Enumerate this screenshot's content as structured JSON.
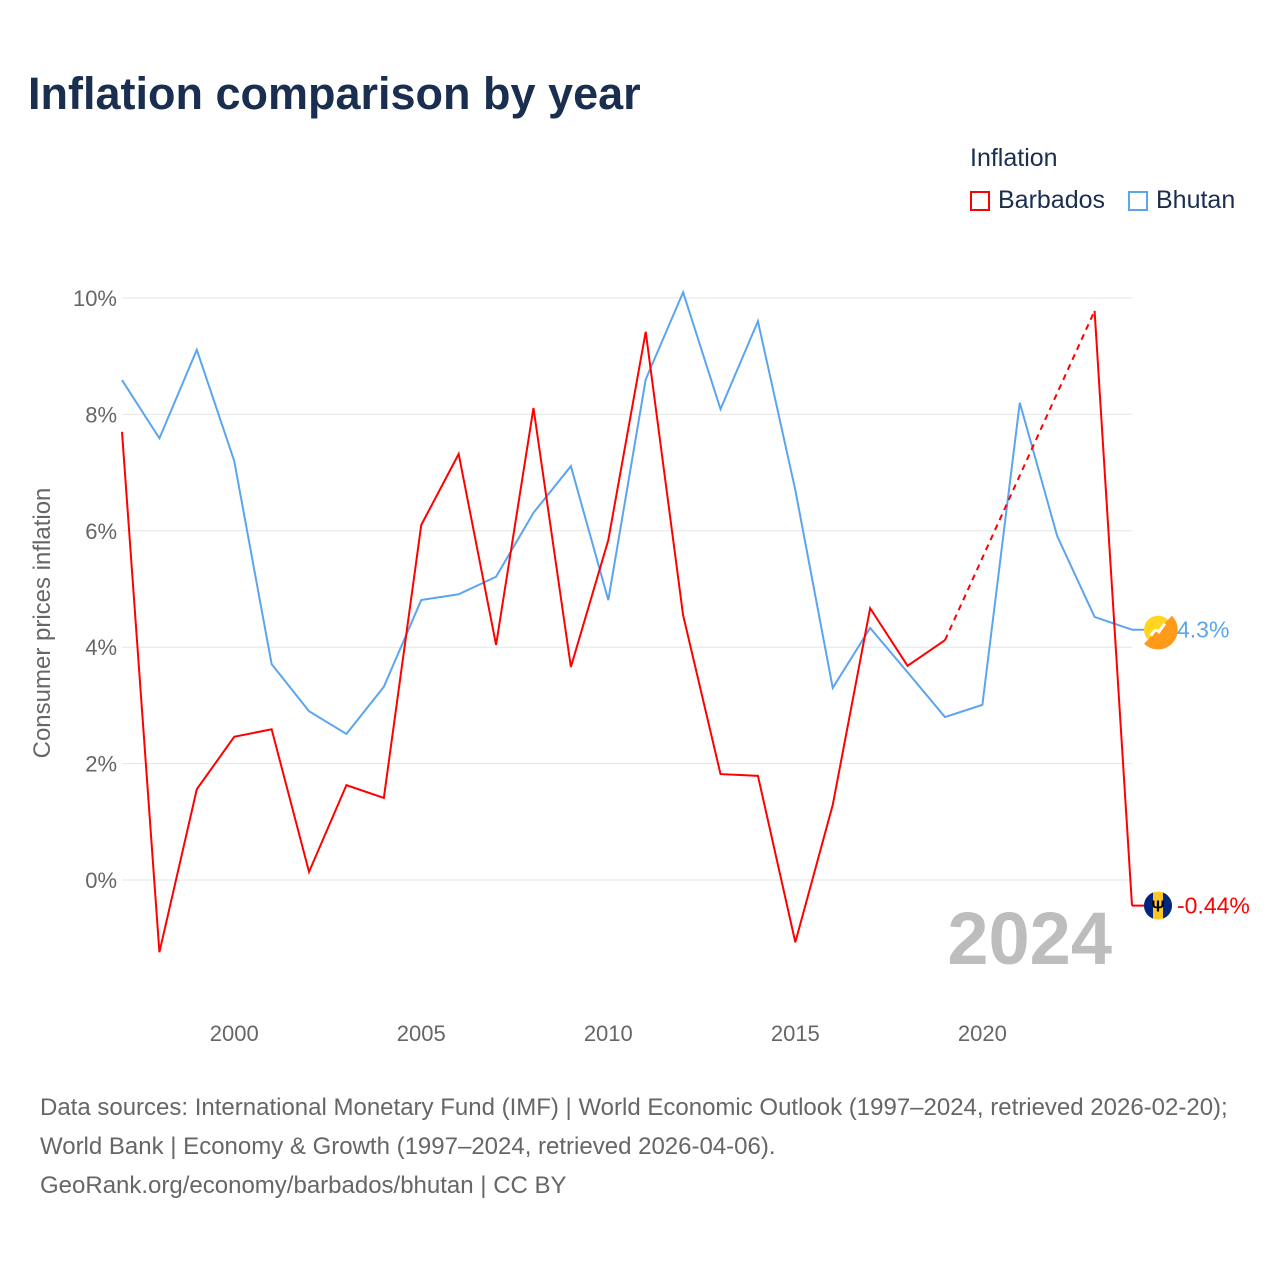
{
  "title": "Inflation comparison by year",
  "legend": {
    "title": "Inflation",
    "items": [
      {
        "name": "Barbados",
        "color": "#ff0000"
      },
      {
        "name": "Bhutan",
        "color": "#5aa5ee"
      }
    ]
  },
  "chart_data": {
    "type": "line",
    "title": "Inflation comparison by year",
    "ylabel": "Consumer prices inflation",
    "xlabel": "",
    "xlim": [
      1997,
      2024
    ],
    "ylim": [
      0,
      10
    ],
    "yticks": [
      0,
      2,
      4,
      6,
      8,
      10
    ],
    "ytick_labels": [
      "0%",
      "2%",
      "4%",
      "6%",
      "8%",
      "10%"
    ],
    "xticks": [
      2000,
      2005,
      2010,
      2015,
      2020
    ],
    "xtick_labels": [
      "2000",
      "2005",
      "2010",
      "2015",
      "2020"
    ],
    "grid": true,
    "legend_position": "top-right",
    "year_watermark": "2024",
    "x": [
      1997,
      1998,
      1999,
      2000,
      2001,
      2002,
      2003,
      2004,
      2005,
      2006,
      2007,
      2008,
      2009,
      2010,
      2011,
      2012,
      2013,
      2014,
      2015,
      2016,
      2017,
      2018,
      2019,
      2020,
      2021,
      2022,
      2023,
      2024
    ],
    "series": [
      {
        "name": "Barbados",
        "color": "#ff0000",
        "end_label": "-0.44%",
        "values": [
          7.7,
          -1.24,
          1.56,
          2.46,
          2.59,
          0.14,
          1.63,
          1.41,
          6.1,
          7.32,
          4.04,
          8.11,
          3.66,
          5.84,
          9.42,
          4.55,
          1.82,
          1.79,
          -1.07,
          1.29,
          4.67,
          3.68,
          4.12,
          null,
          null,
          null,
          9.78,
          -0.44
        ]
      },
      {
        "name": "Bhutan",
        "color": "#5aa5ee",
        "end_label": "4.3%",
        "values": [
          8.59,
          7.59,
          9.11,
          7.2,
          3.71,
          2.9,
          2.51,
          3.32,
          4.81,
          4.91,
          5.21,
          6.31,
          7.11,
          4.81,
          8.6,
          10.1,
          8.09,
          9.6,
          6.7,
          3.3,
          4.33,
          3.57,
          2.8,
          3.01,
          8.2,
          5.91,
          4.52,
          4.3
        ]
      }
    ]
  },
  "source": {
    "line1": "Data sources: International Monetary Fund (IMF) | World Economic Outlook (1997–2024, retrieved 2026-02-20); World Bank | Economy & Growth (1997–2024, retrieved 2026-04-06).",
    "line2": "GeoRank.org/economy/barbados/bhutan | CC BY"
  }
}
